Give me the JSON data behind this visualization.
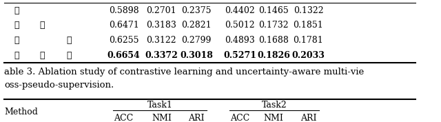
{
  "rows": [
    {
      "col1": "✓",
      "col2": "",
      "col3": "",
      "v1": "0.5898",
      "v2": "0.2701",
      "v3": "0.2375",
      "v4": "0.4402",
      "v5": "0.1465",
      "v6": "0.1322",
      "bold": false
    },
    {
      "col1": "✓",
      "col2": "✓",
      "col3": "",
      "v1": "0.6471",
      "v2": "0.3183",
      "v3": "0.2821",
      "v4": "0.5012",
      "v5": "0.1732",
      "v6": "0.1851",
      "bold": false
    },
    {
      "col1": "✓",
      "col2": "",
      "col3": "✓",
      "v1": "0.6255",
      "v2": "0.3122",
      "v3": "0.2799",
      "v4": "0.4893",
      "v5": "0.1688",
      "v6": "0.1781",
      "bold": false
    },
    {
      "col1": "✓",
      "col2": "✓",
      "col3": "✓",
      "v1": "0.6654",
      "v2": "0.3372",
      "v3": "0.3018",
      "v4": "0.5271",
      "v5": "0.1826",
      "v6": "0.2033",
      "bold": true
    }
  ],
  "caption_line1": "able 3. Ablation study of contrastive learning and uncertainty-aware multi-vie",
  "caption_line2": "oss-pseudo-supervision.",
  "header_method": "Method",
  "header_task1": "Task1",
  "header_task2": "Task2",
  "subheader": [
    "ACC",
    "NMI",
    "ARI",
    "ACC",
    "NMI",
    "ARI"
  ],
  "bg_color": "#ffffff",
  "line_color": "#000000",
  "font_size": 9,
  "caption_font_size": 9.5
}
